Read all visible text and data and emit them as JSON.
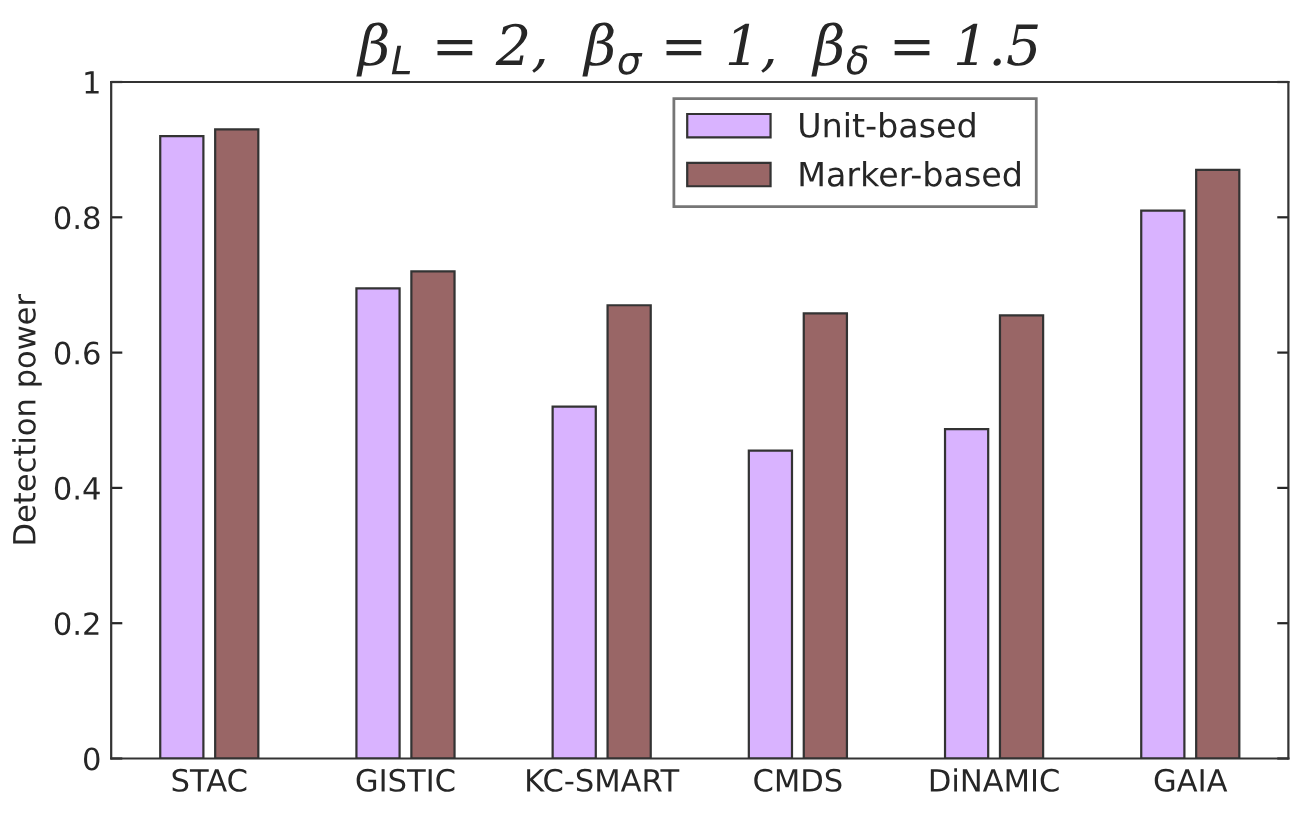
{
  "chart_data": {
    "type": "bar",
    "title": "β$_{L}$ = 2,  β$_{σ}$ = 1,  β$_{δ}$ = 1.5",
    "ylabel": "Detection power",
    "categories": [
      "STAC",
      "GISTIC",
      "KC-SMART",
      "CMDS",
      "DiNAMIC",
      "GAIA"
    ],
    "series": [
      {
        "name": "Unit-based",
        "color": "#d9b3ff",
        "values": [
          0.92,
          0.695,
          0.52,
          0.455,
          0.487,
          0.81
        ]
      },
      {
        "name": "Marker-based",
        "color": "#996666",
        "values": [
          0.93,
          0.72,
          0.67,
          0.658,
          0.655,
          0.87
        ]
      }
    ],
    "ylim": [
      0,
      1
    ],
    "yticks": [
      0,
      0.2,
      0.4,
      0.6,
      0.8,
      1
    ],
    "legend": "top right",
    "grid": false
  }
}
